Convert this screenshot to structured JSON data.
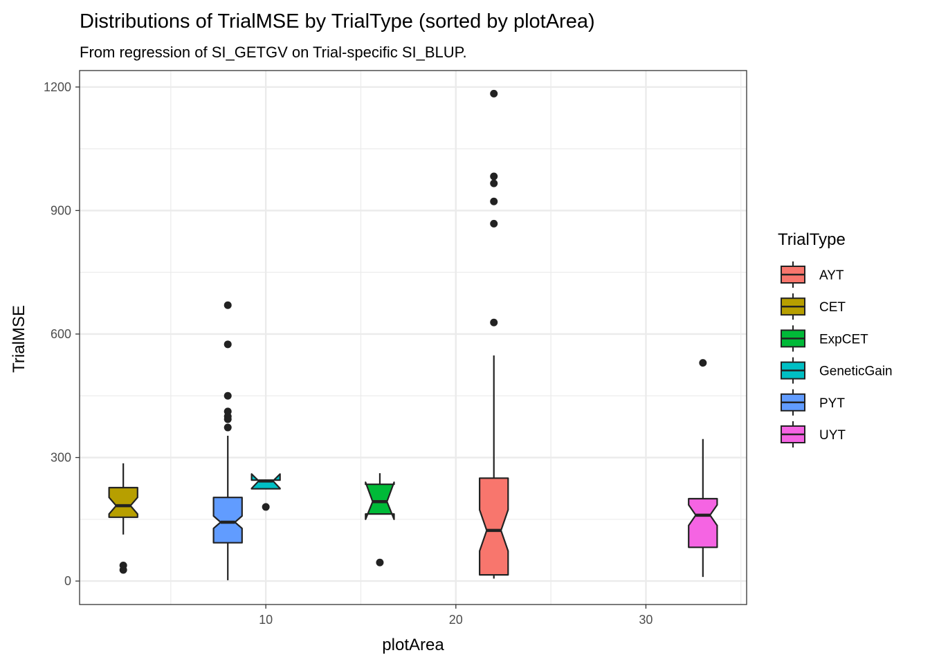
{
  "chart_data": {
    "type": "box",
    "title": "Distributions of TrialMSE by TrialType (sorted by plotArea)",
    "subtitle": "From regression of SI_GETGV on Trial-specific SI_BLUP.",
    "xlabel": "plotArea",
    "ylabel": "TrialMSE",
    "xlim": [
      0.2,
      35.3
    ],
    "ylim": [
      -57,
      1240
    ],
    "x_ticks": [
      10,
      20,
      30
    ],
    "x_minor": [
      5,
      15,
      25,
      35
    ],
    "y_ticks": [
      0,
      300,
      600,
      900,
      1200
    ],
    "y_minor": [
      150,
      450,
      750,
      1050
    ],
    "grid": true,
    "notched": true,
    "legend": {
      "title": "TrialType",
      "position": "right",
      "entries": [
        "AYT",
        "CET",
        "ExpCET",
        "GeneticGain",
        "PYT",
        "UYT"
      ]
    },
    "colors": {
      "AYT": "#F8766D",
      "CET": "#B79F00",
      "ExpCET": "#00BA38",
      "GeneticGain": "#00BFC4",
      "PYT": "#619CFF",
      "UYT": "#F564E3"
    },
    "series": [
      {
        "name": "CET",
        "x": 2.5,
        "width": 1.5,
        "lower_whisker": 113,
        "q1": 155,
        "median": 183,
        "q3": 227,
        "upper_whisker": 286,
        "notch_low": 163,
        "notch_high": 203,
        "outliers": [
          27,
          38
        ]
      },
      {
        "name": "PYT",
        "x": 8,
        "width": 1.5,
        "lower_whisker": 2,
        "q1": 93,
        "median": 143,
        "q3": 203,
        "upper_whisker": 353,
        "notch_low": 128,
        "notch_high": 158,
        "outliers": [
          373,
          393,
          400,
          412,
          450,
          575,
          670
        ]
      },
      {
        "name": "GeneticGain",
        "x": 10,
        "width": 1.5,
        "lower_whisker": 224,
        "q1": 224,
        "median": 243,
        "q3": 245,
        "upper_whisker": 245,
        "notch_low": 225,
        "notch_high": 260,
        "outliers": [
          180
        ]
      },
      {
        "name": "ExpCET",
        "x": 16,
        "width": 1.5,
        "lower_whisker": 162,
        "q1": 163,
        "median": 193,
        "q3": 235,
        "upper_whisker": 262,
        "notch_low": 150,
        "notch_high": 240,
        "outliers": [
          45
        ]
      },
      {
        "name": "AYT",
        "x": 22,
        "width": 1.5,
        "lower_whisker": 6,
        "q1": 15,
        "median": 123,
        "q3": 250,
        "upper_whisker": 548,
        "notch_low": 73,
        "notch_high": 173,
        "outliers": [
          628,
          868,
          922,
          966,
          983,
          1184
        ]
      },
      {
        "name": "UYT",
        "x": 33,
        "width": 1.5,
        "lower_whisker": 10,
        "q1": 82,
        "median": 160,
        "q3": 200,
        "upper_whisker": 345,
        "notch_low": 135,
        "notch_high": 185,
        "outliers": [
          530
        ]
      }
    ]
  }
}
